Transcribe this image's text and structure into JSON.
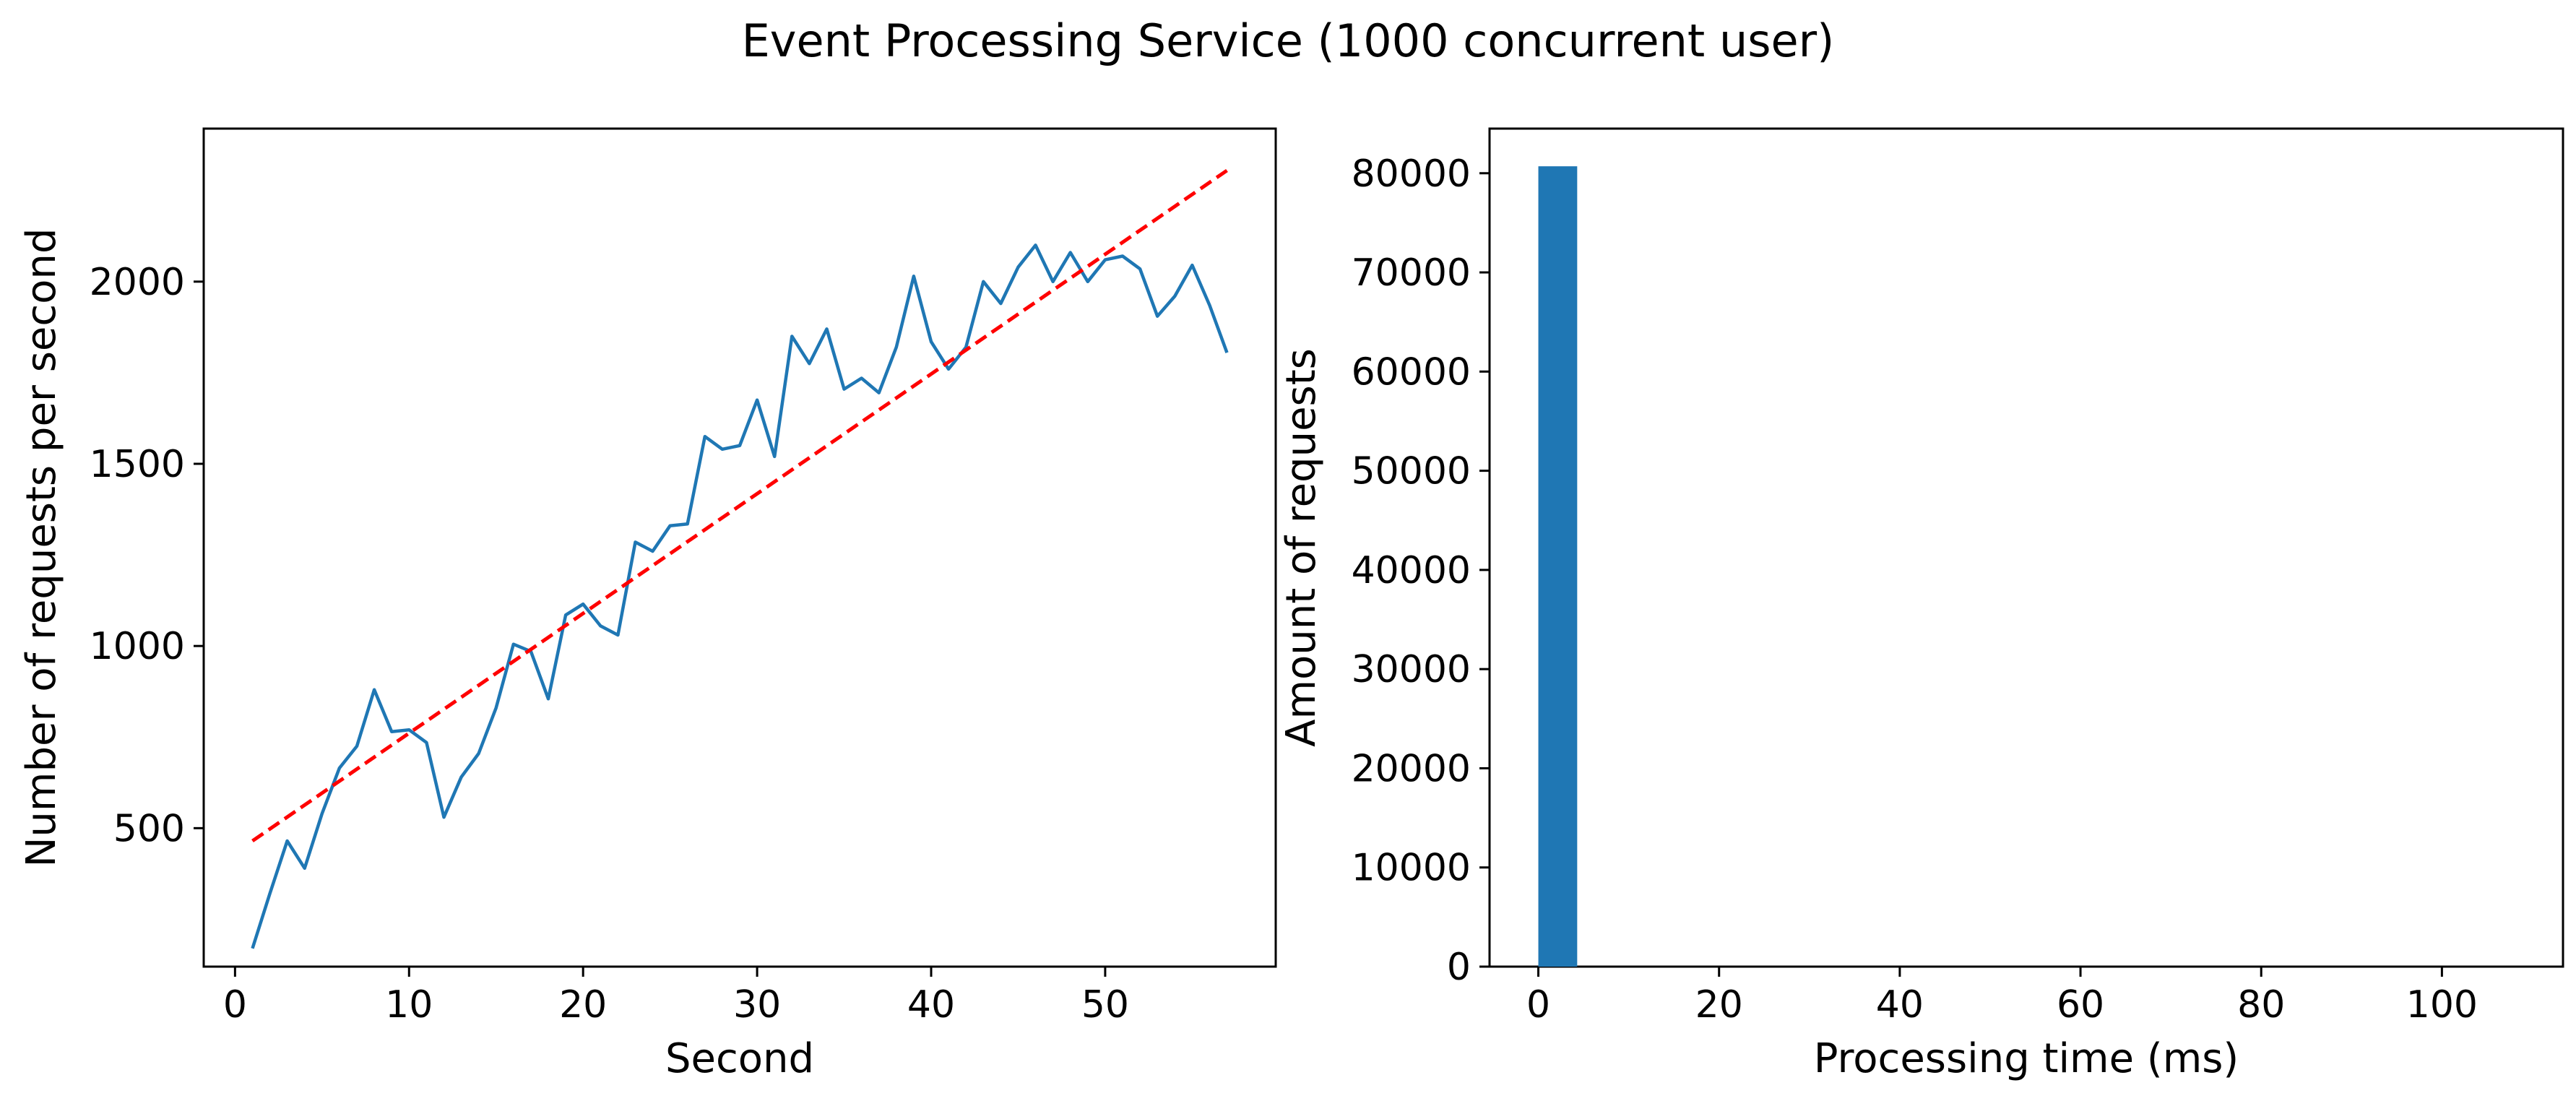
{
  "title": "Event Processing Service (1000 concurrent user)",
  "colors": {
    "series": "#1f77b4",
    "trend": "#ff0000",
    "bar": "#1f77b4"
  },
  "chart_data": [
    {
      "type": "line",
      "xlabel": "Second",
      "ylabel": "Number of requests per second",
      "xlim": [
        -1.8,
        59.8
      ],
      "ylim": [
        120,
        2420
      ],
      "xticks": [
        0,
        10,
        20,
        30,
        40,
        50
      ],
      "yticks": [
        500,
        1000,
        1500,
        2000
      ],
      "grid": false,
      "series": [
        {
          "style": "solid",
          "x": [
            1,
            2,
            3,
            4,
            5,
            6,
            7,
            8,
            9,
            10,
            11,
            12,
            13,
            14,
            15,
            16,
            17,
            18,
            19,
            20,
            21,
            22,
            23,
            24,
            25,
            26,
            27,
            28,
            29,
            30,
            31,
            32,
            33,
            34,
            35,
            36,
            37,
            38,
            39,
            40,
            41,
            42,
            43,
            44,
            45,
            46,
            47,
            48,
            49,
            50,
            51,
            52,
            53,
            54,
            55,
            56,
            57
          ],
          "y": [
            170,
            320,
            465,
            390,
            540,
            665,
            725,
            880,
            765,
            770,
            735,
            530,
            640,
            705,
            830,
            1005,
            985,
            855,
            1085,
            1115,
            1055,
            1030,
            1285,
            1260,
            1330,
            1335,
            1575,
            1540,
            1550,
            1675,
            1520,
            1850,
            1775,
            1870,
            1705,
            1735,
            1695,
            1820,
            2015,
            1835,
            1760,
            1820,
            2000,
            1940,
            2040,
            2100,
            2000,
            2080,
            2000,
            2060,
            2070,
            2035,
            1905,
            1960,
            2045,
            1935,
            1805
          ]
        },
        {
          "style": "dashed",
          "x": [
            1,
            57
          ],
          "y": [
            465,
            2305
          ]
        }
      ]
    },
    {
      "type": "bar",
      "xlabel": "Processing time (ms)",
      "ylabel": "Amount of requests",
      "xlim": [
        -5.4,
        113.4
      ],
      "ylim": [
        0,
        84500
      ],
      "xticks": [
        0,
        20,
        40,
        60,
        80,
        100
      ],
      "yticks": [
        0,
        10000,
        20000,
        30000,
        40000,
        50000,
        60000,
        70000,
        80000
      ],
      "grid": false,
      "bins": [
        {
          "x0": 0,
          "x1": 4.3,
          "value": 80700
        }
      ]
    }
  ]
}
